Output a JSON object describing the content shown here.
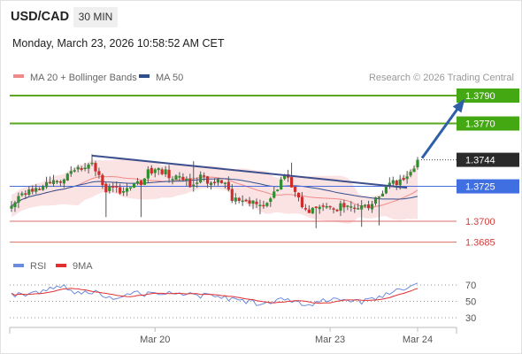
{
  "header": {
    "symbol": "USD/CAD",
    "timeframe": "30 MIN",
    "timestamp": "Monday, March 23, 2026 10:58:52 AM CET",
    "credit": "Research © 2026 Trading Central"
  },
  "colors": {
    "candle_up": "#2f8f2f",
    "candle_down": "#cf2c2c",
    "bollinger_fill": "#fbdede",
    "ma20": "#f08a8a",
    "ma50": "#2f4f8f",
    "resistance": "#5aa81f",
    "support": "#e06a6a",
    "pivot": "#4a6fdc",
    "trendline": "#3d4f8c",
    "arrow": "#2e5fa8",
    "rsi": "#6b8cdc",
    "rsi_ma": "#e23030"
  },
  "chart_data": [
    {
      "type": "candlestick",
      "legend": [
        {
          "name": "MA 20 + Bollinger Bands",
          "color": "#f08a8a"
        },
        {
          "name": "MA 50",
          "color": "#2f4f8f"
        }
      ],
      "ylim": [
        1.365,
        1.3805
      ],
      "x_ticks": [
        {
          "label": "Mar 20",
          "index": 41
        },
        {
          "label": "Mar 23",
          "index": 91
        },
        {
          "label": "Mar 24",
          "index": 116
        }
      ],
      "levels": [
        {
          "value": 1.379,
          "label": "1.3790",
          "role": "resistance"
        },
        {
          "value": 1.377,
          "label": "1.3770",
          "role": "resistance"
        },
        {
          "value": 1.3744,
          "label": "1.3744",
          "role": "last"
        },
        {
          "value": 1.3725,
          "label": "1.3725",
          "role": "pivot"
        },
        {
          "value": 1.37,
          "label": "1.3700",
          "role": "support"
        },
        {
          "value": 1.3685,
          "label": "1.3685",
          "role": "support"
        }
      ],
      "trendline": {
        "start": {
          "index": 23,
          "value": 1.3747
        },
        "end": {
          "index": 113,
          "value": 1.3724
        }
      },
      "projection": {
        "start": {
          "index": 116,
          "value": 1.3744
        },
        "end": {
          "index": 126,
          "value": 1.3788
        }
      },
      "anchors": [
        [
          0,
          1.3713
        ],
        [
          3,
          1.372
        ],
        [
          6,
          1.3723
        ],
        [
          10,
          1.3727
        ],
        [
          13,
          1.3727
        ],
        [
          16,
          1.3734
        ],
        [
          19,
          1.3736
        ],
        [
          23,
          1.3744
        ],
        [
          26,
          1.3724
        ],
        [
          29,
          1.3722
        ],
        [
          33,
          1.3722
        ],
        [
          36,
          1.3726
        ],
        [
          39,
          1.3735
        ],
        [
          42,
          1.3738
        ],
        [
          45,
          1.3733
        ],
        [
          48,
          1.3731
        ],
        [
          51,
          1.3726
        ],
        [
          54,
          1.3732
        ],
        [
          57,
          1.3728
        ],
        [
          60,
          1.3729
        ],
        [
          63,
          1.3717
        ],
        [
          66,
          1.3716
        ],
        [
          69,
          1.3712
        ],
        [
          72,
          1.3713
        ],
        [
          75,
          1.3721
        ],
        [
          78,
          1.3732
        ],
        [
          81,
          1.3721
        ],
        [
          84,
          1.3706
        ],
        [
          87,
          1.3711
        ],
        [
          90,
          1.3713
        ],
        [
          93,
          1.3708
        ],
        [
          96,
          1.3714
        ],
        [
          99,
          1.3709
        ],
        [
          102,
          1.3711
        ],
        [
          105,
          1.3716
        ],
        [
          108,
          1.3726
        ],
        [
          111,
          1.3729
        ],
        [
          114,
          1.3734
        ],
        [
          116,
          1.3744
        ]
      ]
    },
    {
      "type": "line",
      "legend": [
        {
          "name": "RSI",
          "color": "#6b8cdc"
        },
        {
          "name": "9MA",
          "color": "#e23030"
        }
      ],
      "ylim": [
        20,
        80
      ],
      "y_ticks": [
        70,
        50,
        30
      ],
      "anchors": [
        [
          0,
          58
        ],
        [
          6,
          60
        ],
        [
          12,
          66
        ],
        [
          15,
          70
        ],
        [
          18,
          62
        ],
        [
          24,
          61
        ],
        [
          30,
          54
        ],
        [
          36,
          60
        ],
        [
          42,
          58
        ],
        [
          48,
          60
        ],
        [
          54,
          57
        ],
        [
          60,
          55
        ],
        [
          66,
          51
        ],
        [
          72,
          46
        ],
        [
          78,
          52
        ],
        [
          84,
          44
        ],
        [
          90,
          53
        ],
        [
          96,
          49
        ],
        [
          102,
          50
        ],
        [
          108,
          62
        ],
        [
          112,
          66
        ],
        [
          116,
          69
        ]
      ]
    }
  ]
}
